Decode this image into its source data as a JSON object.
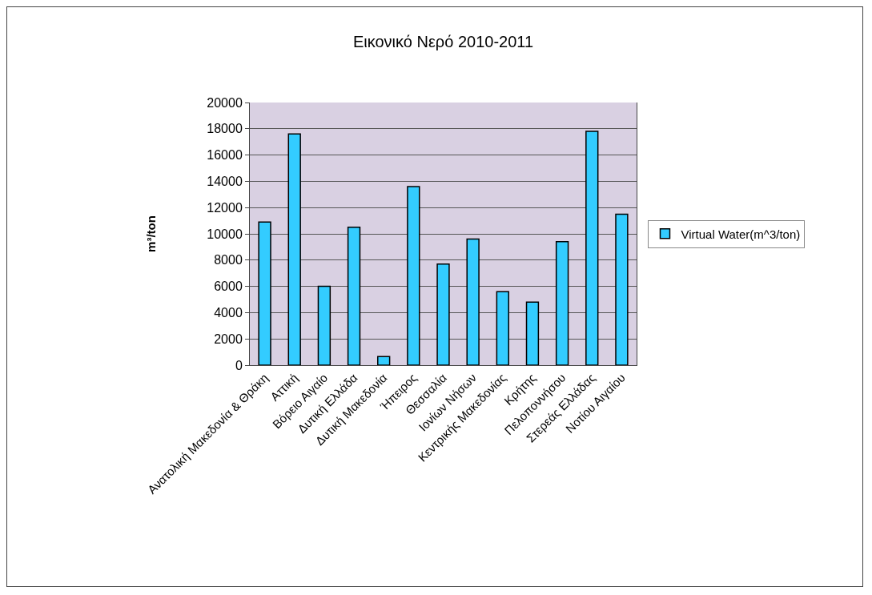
{
  "chart_data": {
    "type": "bar",
    "title": "Εικονικό Νερό 2010-2011",
    "ylabel": "m³/ton",
    "categories": [
      "Ανατολική Μακεδονία & Θράκη",
      "Αττική",
      "Βόρειο Αιγαίο",
      "Δυτική Ελλάδα",
      "Δυτική Μακεδονία",
      "Ήπειρος",
      "Θεσσαλία",
      "Ιονίων Νήσων",
      "Κεντρικής Μακεδονίας",
      "Κρήτης",
      "Πελοποννήσου",
      "Στερεάς Ελλάδας",
      "Νοτίου Αιγαίου"
    ],
    "series": [
      {
        "name": "Virtual Water(m^3/ton)",
        "color": "#33ccff",
        "values": [
          10900,
          17600,
          6000,
          10500,
          650,
          13600,
          7700,
          9600,
          5600,
          4800,
          9400,
          17800,
          11500
        ]
      }
    ],
    "ylim": [
      0,
      20000
    ],
    "yticks": [
      0,
      2000,
      4000,
      6000,
      8000,
      10000,
      12000,
      14000,
      16000,
      18000,
      20000
    ],
    "grid": "y",
    "legend": "right"
  }
}
